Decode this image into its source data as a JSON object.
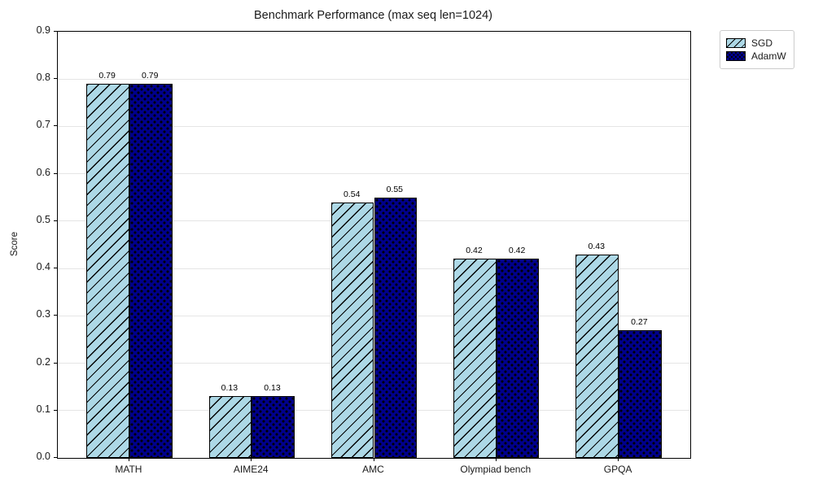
{
  "chart_data": {
    "type": "bar",
    "title": "Benchmark Performance (max seq len=1024)",
    "xlabel": "",
    "ylabel": "Score",
    "categories": [
      "MATH",
      "AIME24",
      "AMC",
      "Olympiad bench",
      "GPQA"
    ],
    "series": [
      {
        "name": "SGD",
        "values": [
          0.79,
          0.13,
          0.54,
          0.42,
          0.43
        ],
        "value_labels": [
          "0.79",
          "0.13",
          "0.54",
          "0.42",
          "0.43"
        ],
        "color": "#ADD8E6",
        "hatch": "diagonal"
      },
      {
        "name": "AdamW",
        "values": [
          0.79,
          0.13,
          0.55,
          0.42,
          0.27
        ],
        "value_labels": [
          "0.79",
          "0.13",
          "0.55",
          "0.42",
          "0.27"
        ],
        "color": "#00008B",
        "hatch": "dots"
      }
    ],
    "ylim": [
      0.0,
      0.9
    ],
    "yticks": [
      "0.0",
      "0.1",
      "0.2",
      "0.3",
      "0.4",
      "0.5",
      "0.6",
      "0.7",
      "0.8",
      "0.9"
    ],
    "grid": "horizontal",
    "grid_color": "#e5e5e5",
    "edge_color": "#000000",
    "legend_position": "outside-top-right"
  }
}
